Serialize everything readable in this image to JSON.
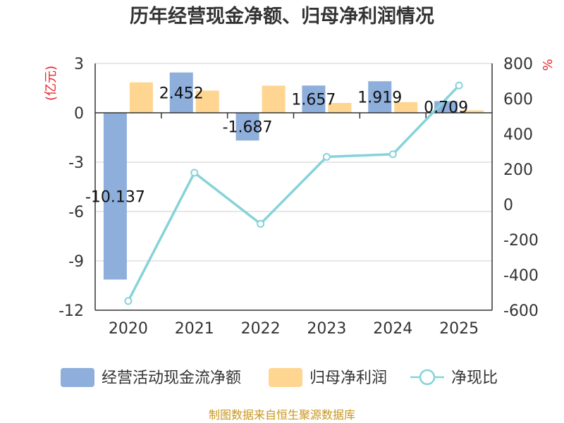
{
  "chart_data": {
    "type": "bar",
    "title": "历年经营现金净额、归母净利润情况",
    "categories": [
      "2020",
      "2021",
      "2022",
      "2023",
      "2024",
      "2025"
    ],
    "left_axis": {
      "unit": "(亿元)",
      "ylim": [
        -12,
        3
      ],
      "ticks": [
        3,
        0,
        -3,
        -6,
        -9,
        -12
      ]
    },
    "right_axis": {
      "unit": "%",
      "ylim": [
        -600,
        800
      ],
      "ticks": [
        800,
        600,
        400,
        200,
        0,
        -200,
        -400,
        -600
      ]
    },
    "series": [
      {
        "name": "经营活动现金流净额",
        "type": "bar",
        "axis": "left",
        "color": "#8eaedb",
        "values": [
          -10.137,
          2.452,
          -1.687,
          1.657,
          1.919,
          0.709
        ],
        "labels": [
          "-10.137",
          "2.452",
          "-1.687",
          "1.657",
          "1.919",
          "0.709"
        ]
      },
      {
        "name": "归母净利润",
        "type": "bar",
        "axis": "left",
        "color": "#fed591",
        "values": [
          1.85,
          1.35,
          1.65,
          0.6,
          0.65,
          0.15
        ]
      },
      {
        "name": "净现比",
        "type": "line",
        "axis": "right",
        "color": "#86d3d9",
        "values": [
          -548,
          180,
          -110,
          270,
          285,
          675
        ]
      }
    ],
    "grid": true,
    "legend": "bottom"
  },
  "source": "制图数据来自恒生聚源数据库"
}
